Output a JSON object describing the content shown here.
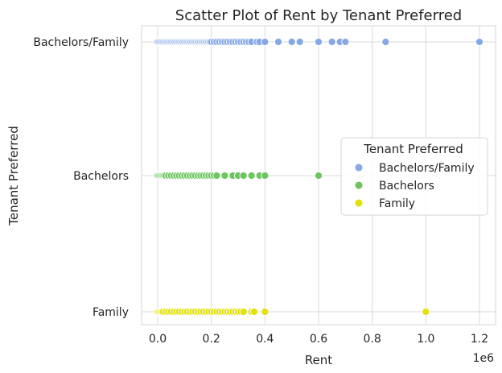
{
  "chart_data": {
    "type": "scatter",
    "title": "Scatter Plot of Rent by Tenant Preferred",
    "xlabel": "Rent",
    "ylabel": "Tenant Preferred",
    "x_offset_label": "1e6",
    "xlim": [
      -0.06,
      1.26
    ],
    "xticks": [
      "0.0",
      "0.2",
      "0.4",
      "0.6",
      "0.8",
      "1.0",
      "1.2"
    ],
    "xtick_values": [
      0.0,
      0.2,
      0.4,
      0.6,
      0.8,
      1.0,
      1.2
    ],
    "categories": [
      "Bachelors/Family",
      "Bachelors",
      "Family"
    ],
    "grid": true,
    "legend": {
      "title": "Tenant Preferred",
      "placement": "center-right"
    },
    "series": [
      {
        "name": "Bachelors/Family",
        "color": "#86a8e7",
        "x": [
          0.0,
          0.005,
          0.01,
          0.015,
          0.02,
          0.025,
          0.03,
          0.035,
          0.04,
          0.045,
          0.05,
          0.055,
          0.06,
          0.065,
          0.07,
          0.075,
          0.08,
          0.085,
          0.09,
          0.095,
          0.1,
          0.105,
          0.11,
          0.115,
          0.12,
          0.125,
          0.13,
          0.135,
          0.14,
          0.145,
          0.15,
          0.155,
          0.16,
          0.165,
          0.17,
          0.175,
          0.18,
          0.185,
          0.19,
          0.195,
          0.2,
          0.21,
          0.22,
          0.23,
          0.24,
          0.25,
          0.26,
          0.27,
          0.28,
          0.29,
          0.3,
          0.31,
          0.32,
          0.33,
          0.34,
          0.35,
          0.37,
          0.38,
          0.4,
          0.45,
          0.5,
          0.53,
          0.6,
          0.65,
          0.68,
          0.7,
          0.85,
          1.2
        ],
        "y": "Bachelors/Family"
      },
      {
        "name": "Bachelors",
        "color": "#6cc55f",
        "x": [
          0.0,
          0.005,
          0.01,
          0.015,
          0.02,
          0.025,
          0.03,
          0.04,
          0.05,
          0.06,
          0.07,
          0.08,
          0.09,
          0.1,
          0.11,
          0.12,
          0.13,
          0.14,
          0.15,
          0.16,
          0.17,
          0.18,
          0.19,
          0.2,
          0.21,
          0.22,
          0.25,
          0.28,
          0.3,
          0.32,
          0.35,
          0.38,
          0.4,
          0.6
        ],
        "y": "Bachelors"
      },
      {
        "name": "Family",
        "color": "#e2e20a",
        "x": [
          0.0,
          0.005,
          0.01,
          0.015,
          0.02,
          0.03,
          0.04,
          0.05,
          0.06,
          0.07,
          0.08,
          0.09,
          0.1,
          0.11,
          0.12,
          0.13,
          0.14,
          0.15,
          0.16,
          0.17,
          0.18,
          0.19,
          0.2,
          0.21,
          0.22,
          0.23,
          0.24,
          0.25,
          0.26,
          0.27,
          0.28,
          0.29,
          0.3,
          0.31,
          0.32,
          0.35,
          0.36,
          0.4,
          1.0
        ],
        "y": "Family"
      }
    ]
  }
}
